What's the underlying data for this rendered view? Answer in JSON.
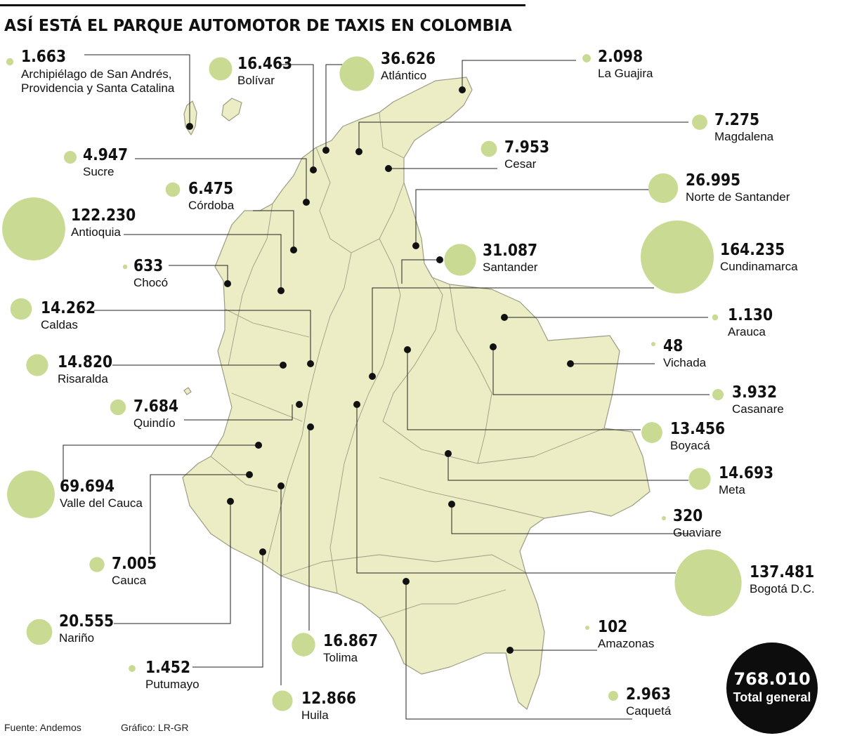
{
  "title": "ASÍ ESTÁ EL PARQUE AUTOMOTOR DE TAXIS EN COLOMBIA",
  "colors": {
    "bubble": "#c9da93",
    "map_fill": "#ecedc4",
    "map_stroke": "#9c9c86",
    "dot": "#111111",
    "total_bg": "#0d0d0d"
  },
  "regions": [
    {
      "id": "san-andres",
      "value": "1.663",
      "value_num": 1663,
      "name": "Archipiélago de San Andrés, Providencia y Santa Catalina"
    },
    {
      "id": "bolivar",
      "value": "16.463",
      "value_num": 16463,
      "name": "Bolívar"
    },
    {
      "id": "atlantico",
      "value": "36.626",
      "value_num": 36626,
      "name": "Atlántico"
    },
    {
      "id": "la-guajira",
      "value": "2.098",
      "value_num": 2098,
      "name": "La Guajira"
    },
    {
      "id": "magdalena",
      "value": "7.275",
      "value_num": 7275,
      "name": "Magdalena"
    },
    {
      "id": "sucre",
      "value": "4.947",
      "value_num": 4947,
      "name": "Sucre"
    },
    {
      "id": "cesar",
      "value": "7.953",
      "value_num": 7953,
      "name": "Cesar"
    },
    {
      "id": "cordoba",
      "value": "6.475",
      "value_num": 6475,
      "name": "Córdoba"
    },
    {
      "id": "norte-de-santander",
      "value": "26.995",
      "value_num": 26995,
      "name": "Norte de Santander"
    },
    {
      "id": "antioquia",
      "value": "122.230",
      "value_num": 122230,
      "name": "Antioquia"
    },
    {
      "id": "cundinamarca",
      "value": "164.235",
      "value_num": 164235,
      "name": "Cundinamarca"
    },
    {
      "id": "choco",
      "value": "633",
      "value_num": 633,
      "name": "Chocó"
    },
    {
      "id": "santander",
      "value": "31.087",
      "value_num": 31087,
      "name": "Santander"
    },
    {
      "id": "caldas",
      "value": "14.262",
      "value_num": 14262,
      "name": "Caldas"
    },
    {
      "id": "arauca",
      "value": "1.130",
      "value_num": 1130,
      "name": "Arauca"
    },
    {
      "id": "vichada",
      "value": "48",
      "value_num": 48,
      "name": "Vichada"
    },
    {
      "id": "risaralda",
      "value": "14.820",
      "value_num": 14820,
      "name": "Risaralda"
    },
    {
      "id": "casanare",
      "value": "3.932",
      "value_num": 3932,
      "name": "Casanare"
    },
    {
      "id": "quindio",
      "value": "7.684",
      "value_num": 7684,
      "name": "Quindío"
    },
    {
      "id": "boyaca",
      "value": "13.456",
      "value_num": 13456,
      "name": "Boyacá"
    },
    {
      "id": "valle-del-cauca",
      "value": "69.694",
      "value_num": 69694,
      "name": "Valle del Cauca"
    },
    {
      "id": "meta",
      "value": "14.693",
      "value_num": 14693,
      "name": "Meta"
    },
    {
      "id": "guaviare",
      "value": "320",
      "value_num": 320,
      "name": "Guaviare"
    },
    {
      "id": "cauca",
      "value": "7.005",
      "value_num": 7005,
      "name": "Cauca"
    },
    {
      "id": "bogota",
      "value": "137.481",
      "value_num": 137481,
      "name": "Bogotá D.C."
    },
    {
      "id": "narino",
      "value": "20.555",
      "value_num": 20555,
      "name": "Nariño"
    },
    {
      "id": "amazonas",
      "value": "102",
      "value_num": 102,
      "name": "Amazonas"
    },
    {
      "id": "tolima",
      "value": "16.867",
      "value_num": 16867,
      "name": "Tolima"
    },
    {
      "id": "putumayo",
      "value": "1.452",
      "value_num": 1452,
      "name": "Putumayo"
    },
    {
      "id": "huila",
      "value": "12.866",
      "value_num": 12866,
      "name": "Huila"
    },
    {
      "id": "caqueta",
      "value": "2.963",
      "value_num": 2963,
      "name": "Caquetá"
    }
  ],
  "total": {
    "value": "768.010",
    "label": "Total general"
  },
  "footer": {
    "source": "Fuente: Andemos",
    "credit": "Gráfico: LR-GR"
  }
}
